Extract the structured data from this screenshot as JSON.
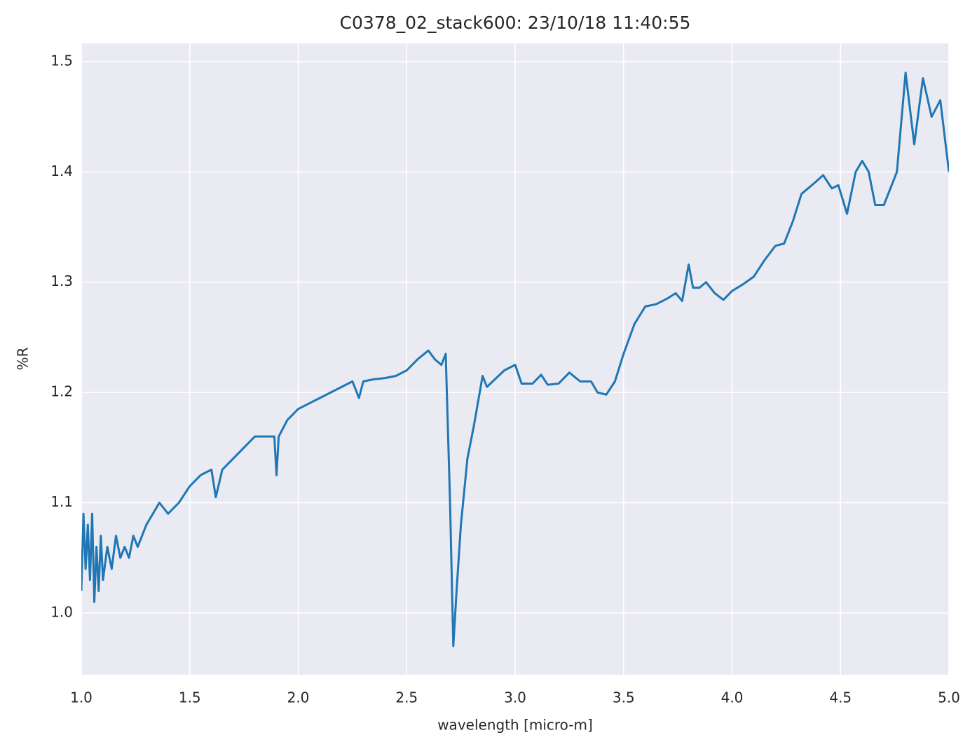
{
  "chart_data": {
    "type": "line",
    "title": "C0378_02_stack600:  23/10/18 11:40:55",
    "xlabel": "wavelength [micro-m]",
    "ylabel": "%R",
    "x": [
      1.0,
      1.01,
      1.02,
      1.03,
      1.04,
      1.05,
      1.06,
      1.07,
      1.08,
      1.09,
      1.1,
      1.12,
      1.14,
      1.16,
      1.18,
      1.2,
      1.22,
      1.24,
      1.26,
      1.3,
      1.33,
      1.36,
      1.4,
      1.45,
      1.5,
      1.55,
      1.6,
      1.62,
      1.65,
      1.7,
      1.75,
      1.8,
      1.85,
      1.89,
      1.9,
      1.91,
      1.95,
      2.0,
      2.05,
      2.1,
      2.15,
      2.2,
      2.25,
      2.28,
      2.3,
      2.35,
      2.4,
      2.45,
      2.5,
      2.55,
      2.6,
      2.63,
      2.66,
      2.68,
      2.7,
      2.715,
      2.73,
      2.75,
      2.78,
      2.81,
      2.85,
      2.87,
      2.95,
      3.0,
      3.03,
      3.08,
      3.12,
      3.15,
      3.2,
      3.25,
      3.3,
      3.35,
      3.38,
      3.42,
      3.46,
      3.5,
      3.55,
      3.6,
      3.65,
      3.7,
      3.74,
      3.77,
      3.8,
      3.82,
      3.85,
      3.88,
      3.92,
      3.96,
      4.0,
      4.05,
      4.1,
      4.15,
      4.2,
      4.24,
      4.28,
      4.32,
      4.38,
      4.42,
      4.46,
      4.49,
      4.53,
      4.57,
      4.6,
      4.63,
      4.66,
      4.7,
      4.73,
      4.76,
      4.8,
      4.84,
      4.88,
      4.92,
      4.96,
      5.0
    ],
    "series": [
      {
        "color": "#1f77b4",
        "values": [
          1.02,
          1.09,
          1.04,
          1.08,
          1.03,
          1.09,
          1.01,
          1.06,
          1.02,
          1.07,
          1.03,
          1.06,
          1.04,
          1.07,
          1.05,
          1.06,
          1.05,
          1.07,
          1.06,
          1.08,
          1.09,
          1.1,
          1.09,
          1.1,
          1.115,
          1.125,
          1.13,
          1.105,
          1.13,
          1.14,
          1.15,
          1.16,
          1.16,
          1.16,
          1.125,
          1.16,
          1.175,
          1.185,
          1.19,
          1.195,
          1.2,
          1.205,
          1.21,
          1.195,
          1.21,
          1.212,
          1.213,
          1.215,
          1.22,
          1.23,
          1.238,
          1.23,
          1.225,
          1.235,
          1.1,
          0.97,
          1.02,
          1.08,
          1.14,
          1.17,
          1.215,
          1.205,
          1.22,
          1.225,
          1.208,
          1.208,
          1.216,
          1.207,
          1.208,
          1.218,
          1.21,
          1.21,
          1.2,
          1.198,
          1.21,
          1.235,
          1.262,
          1.278,
          1.28,
          1.285,
          1.29,
          1.283,
          1.316,
          1.295,
          1.295,
          1.3,
          1.29,
          1.284,
          1.292,
          1.298,
          1.305,
          1.32,
          1.333,
          1.335,
          1.355,
          1.38,
          1.39,
          1.397,
          1.385,
          1.388,
          1.362,
          1.4,
          1.41,
          1.4,
          1.37,
          1.37,
          1.385,
          1.4,
          1.49,
          1.425,
          1.485,
          1.45,
          1.465,
          1.4
        ]
      }
    ],
    "xlim": [
      1.0,
      5.0
    ],
    "xticks": [
      {
        "value": 1.0,
        "label": "1.0"
      },
      1.5,
      {
        "value": 2.0,
        "label": "2.0"
      },
      2.5,
      {
        "value": 3.0,
        "label": "3.0"
      },
      3.5,
      {
        "value": 4.0,
        "label": "4.0"
      },
      4.5,
      {
        "value": 5.0,
        "label": "5.0"
      }
    ],
    "ylim": [
      0.944,
      1.5165
    ],
    "yticks": [
      {
        "value": 1.0,
        "label": "1.0"
      },
      1.1,
      1.2,
      1.3,
      1.4,
      1.5
    ],
    "grid": true
  }
}
